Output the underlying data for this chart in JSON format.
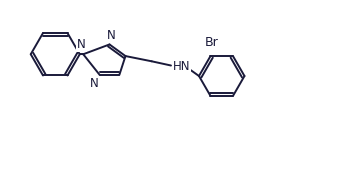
{
  "bg_color": "#ffffff",
  "line_color": "#1a1a3a",
  "line_width": 1.4,
  "font_size": 8.5,
  "figsize": [
    3.52,
    1.75
  ],
  "dpi": 100,
  "xlim": [
    0,
    10
  ],
  "ylim": [
    0,
    5
  ]
}
